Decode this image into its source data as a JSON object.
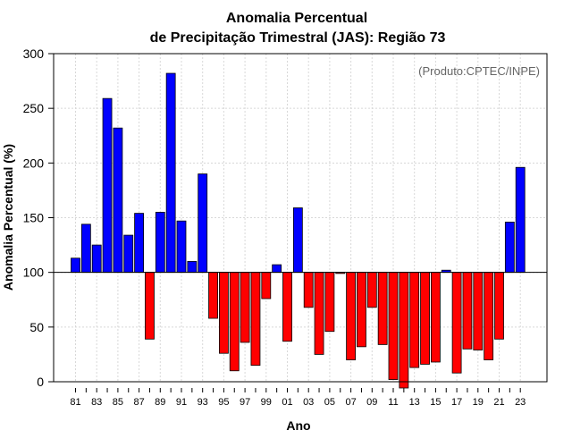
{
  "chart_data": {
    "type": "bar",
    "title_line1": "Anomalia Percentual",
    "title_line2": "de Precipitação Trimestral (JAS): Região 73",
    "xlabel": "Ano",
    "ylabel": "Anomalia Percentual (%)",
    "source": "(Produto:CPTEC/INPE)",
    "ylim": [
      0,
      300
    ],
    "yticks": [
      0,
      50,
      100,
      150,
      200,
      250,
      300
    ],
    "baseline": 100,
    "grid": true,
    "colors": {
      "above": "#0000ff",
      "below": "#ff0000",
      "edge": "#000000",
      "baseline": "#000000",
      "grid": "#d8d8d8"
    },
    "x_tick_labels": [
      "81",
      "83",
      "85",
      "87",
      "89",
      "91",
      "93",
      "95",
      "97",
      "99",
      "01",
      "03",
      "05",
      "07",
      "09",
      "11",
      "13",
      "15",
      "17",
      "19",
      "21",
      "23"
    ],
    "categories": [
      "1981",
      "1982",
      "1983",
      "1984",
      "1985",
      "1986",
      "1987",
      "1988",
      "1989",
      "1990",
      "1991",
      "1992",
      "1993",
      "1994",
      "1995",
      "1996",
      "1997",
      "1998",
      "1999",
      "2000",
      "2001",
      "2002",
      "2003",
      "2004",
      "2005",
      "2006",
      "2007",
      "2008",
      "2009",
      "2010",
      "2011",
      "2012",
      "2013",
      "2014",
      "2015",
      "2016",
      "2017",
      "2018",
      "2019",
      "2020",
      "2021",
      "2022",
      "2023"
    ],
    "values": [
      113,
      144,
      125,
      259,
      232,
      134,
      154,
      39,
      155,
      282,
      147,
      110,
      190,
      58,
      26,
      10,
      36,
      15,
      76,
      107,
      37,
      159,
      68,
      25,
      46,
      99,
      20,
      32,
      68,
      34,
      2,
      -5,
      13,
      16,
      18,
      102,
      8,
      30,
      29,
      20,
      39,
      146,
      196
    ]
  }
}
